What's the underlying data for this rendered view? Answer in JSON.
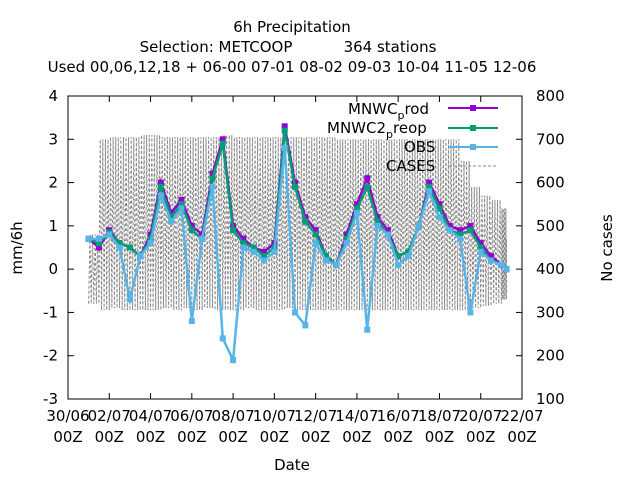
{
  "title": {
    "line1": "6h Precipitation",
    "line2_prefix": "Selection: METCOOP",
    "line2_suffix": "364 stations",
    "line3": "Used  00,06,12,18  + 06-00 07-01 08-02 09-03 10-04 11-05 12-06"
  },
  "chart_data": {
    "type": "line",
    "title": "6h Precipitation",
    "xlabel": "Date",
    "ylabel": "mm/6h",
    "y2label": "No cases",
    "ylim": [
      -3,
      4
    ],
    "y2lim": [
      100,
      800
    ],
    "xlim": [
      0,
      22
    ],
    "x_ticks": [
      {
        "pos": 0,
        "l1": "30/06",
        "l2": "00Z"
      },
      {
        "pos": 2,
        "l1": "02/07",
        "l2": "00Z"
      },
      {
        "pos": 4,
        "l1": "04/07",
        "l2": "00Z"
      },
      {
        "pos": 6,
        "l1": "06/07",
        "l2": "00Z"
      },
      {
        "pos": 8,
        "l1": "08/07",
        "l2": "00Z"
      },
      {
        "pos": 10,
        "l1": "10/07",
        "l2": "00Z"
      },
      {
        "pos": 12,
        "l1": "12/07",
        "l2": "00Z"
      },
      {
        "pos": 14,
        "l1": "14/07",
        "l2": "00Z"
      },
      {
        "pos": 16,
        "l1": "16/07",
        "l2": "00Z"
      },
      {
        "pos": 18,
        "l1": "18/07",
        "l2": "00Z"
      },
      {
        "pos": 20,
        "l1": "20/07",
        "l2": "00Z"
      },
      {
        "pos": 22,
        "l1": "22/07",
        "l2": "00Z"
      }
    ],
    "y_ticks": [
      -3,
      -2,
      -1,
      0,
      1,
      2,
      3,
      4
    ],
    "y2_ticks": [
      100,
      200,
      300,
      400,
      500,
      600,
      700,
      800
    ],
    "legend_position": "top-right",
    "x": [
      1.0,
      1.5,
      2.0,
      2.5,
      3.0,
      3.5,
      4.0,
      4.5,
      5.0,
      5.5,
      6.0,
      6.5,
      7.0,
      7.5,
      8.0,
      8.5,
      9.0,
      9.5,
      10.0,
      10.5,
      11.0,
      11.5,
      12.0,
      12.5,
      13.0,
      13.5,
      14.0,
      14.5,
      15.0,
      15.5,
      16.0,
      16.5,
      17.0,
      17.5,
      18.0,
      18.5,
      19.0,
      19.5,
      20.0,
      20.5,
      21.0,
      21.25
    ],
    "series": [
      {
        "name": "MNWC_prod",
        "color": "#9400d3",
        "values": [
          0.7,
          0.5,
          0.9,
          0.6,
          0.5,
          0.3,
          0.8,
          2.0,
          1.3,
          1.6,
          1.0,
          0.8,
          2.2,
          3.0,
          1.0,
          0.7,
          0.5,
          0.4,
          0.6,
          3.3,
          2.0,
          1.2,
          0.9,
          0.3,
          0.1,
          0.8,
          1.5,
          2.1,
          1.2,
          0.9,
          0.3,
          0.4,
          1.0,
          2.0,
          1.5,
          1.0,
          0.9,
          1.0,
          0.6,
          0.3,
          0.1,
          0.0
        ]
      },
      {
        "name": "MNWC2_preop",
        "color": "#009e73",
        "values": [
          0.7,
          0.6,
          0.85,
          0.6,
          0.5,
          0.3,
          0.7,
          1.9,
          1.2,
          1.5,
          0.9,
          0.7,
          2.1,
          2.9,
          0.9,
          0.6,
          0.5,
          0.3,
          0.5,
          3.2,
          1.9,
          1.1,
          0.8,
          0.3,
          0.1,
          0.7,
          1.4,
          1.9,
          1.1,
          0.8,
          0.3,
          0.4,
          1.0,
          1.9,
          1.4,
          0.9,
          0.8,
          0.9,
          0.5,
          0.2,
          0.1,
          0.0
        ]
      },
      {
        "name": "OBS",
        "color": "#56b4e9",
        "values": [
          0.7,
          0.7,
          0.8,
          0.5,
          -0.7,
          0.3,
          0.6,
          1.7,
          1.1,
          1.4,
          -1.2,
          0.7,
          1.9,
          -1.6,
          -2.1,
          0.5,
          0.4,
          0.2,
          0.4,
          2.8,
          -1.0,
          -1.3,
          0.6,
          0.2,
          0.1,
          0.6,
          1.3,
          -1.4,
          1.0,
          0.8,
          0.1,
          0.3,
          1.0,
          1.8,
          1.2,
          0.9,
          0.7,
          -1.0,
          0.4,
          0.2,
          0.1,
          0.0
        ]
      },
      {
        "name": "CASES",
        "color": "#888888",
        "axis": "y2",
        "values_low": [
          320,
          305,
          310,
          305,
          305,
          305,
          305,
          310,
          305,
          310,
          305,
          310,
          305,
          305,
          305,
          310,
          305,
          305,
          305,
          310,
          305,
          305,
          305,
          305,
          305,
          305,
          305,
          305,
          305,
          305,
          305,
          305,
          305,
          305,
          305,
          305,
          305,
          310,
          315,
          320,
          330,
          340
        ],
        "values_high": [
          480,
          700,
          705,
          705,
          705,
          710,
          710,
          705,
          705,
          705,
          705,
          705,
          705,
          710,
          705,
          705,
          705,
          705,
          705,
          705,
          705,
          705,
          705,
          705,
          700,
          700,
          700,
          700,
          700,
          700,
          700,
          700,
          700,
          700,
          700,
          700,
          650,
          590,
          570,
          560,
          540,
          470
        ]
      }
    ]
  },
  "legend": {
    "prod_label": "MNWC",
    "prod_sub": "p",
    "prod_rest": "rod",
    "preop_label": "MNWC2",
    "preop_sub": "p",
    "preop_rest": "reop",
    "obs_label": "OBS",
    "cases_label": "CASES"
  }
}
